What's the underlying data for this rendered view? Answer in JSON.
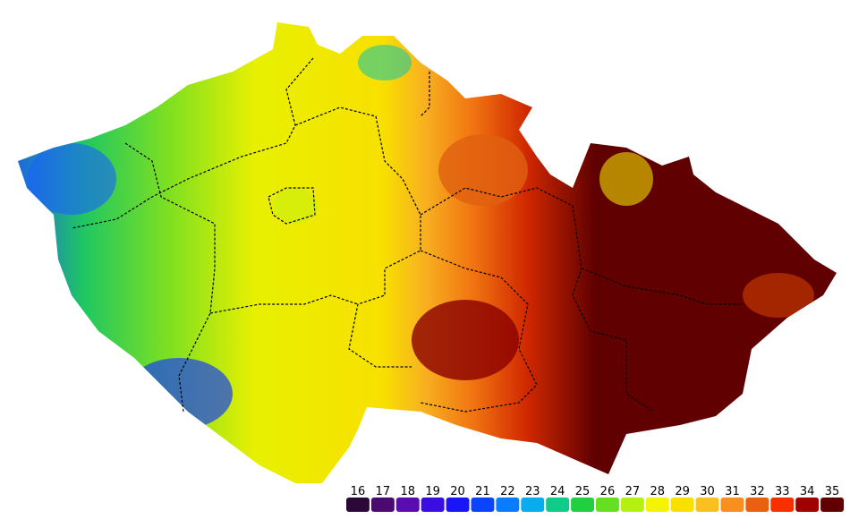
{
  "legend": {
    "items": [
      {
        "value": 16,
        "color": "#2a0838"
      },
      {
        "value": 17,
        "color": "#4a0a70"
      },
      {
        "value": 18,
        "color": "#5a0cb0"
      },
      {
        "value": 19,
        "color": "#3a0ee0"
      },
      {
        "value": 20,
        "color": "#1a14f8"
      },
      {
        "value": 21,
        "color": "#0a44ff"
      },
      {
        "value": 22,
        "color": "#0a7cff"
      },
      {
        "value": 23,
        "color": "#0aacf0"
      },
      {
        "value": 24,
        "color": "#10cc88"
      },
      {
        "value": 25,
        "color": "#20d040"
      },
      {
        "value": 26,
        "color": "#64e020"
      },
      {
        "value": 27,
        "color": "#b4f010"
      },
      {
        "value": 28,
        "color": "#f4f400"
      },
      {
        "value": 29,
        "color": "#f8e000"
      },
      {
        "value": 30,
        "color": "#f8c020"
      },
      {
        "value": 31,
        "color": "#f89020"
      },
      {
        "value": 32,
        "color": "#e86010"
      },
      {
        "value": 33,
        "color": "#f83000"
      },
      {
        "value": 34,
        "color": "#a00000"
      },
      {
        "value": 35,
        "color": "#600000"
      }
    ]
  }
}
